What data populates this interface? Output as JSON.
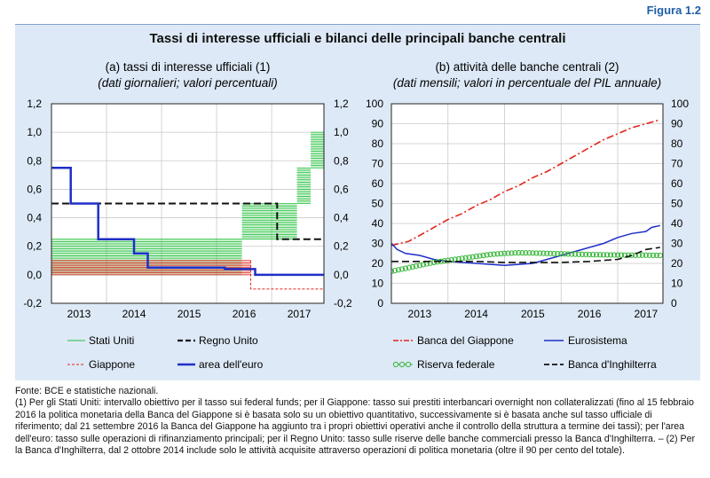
{
  "figure_label": "Figura 1.2",
  "title": "Tassi di interesse ufficiali e bilanci delle principali banche centrali",
  "colors": {
    "panel_bg": "#dde9f6",
    "stati_uniti": "#22c03a",
    "giappone": "#e3251d",
    "regno_unito": "#111111",
    "area_euro": "#1f2fc8",
    "eurosistema": "#1f2fc8",
    "riserva_federale": "#35b535"
  },
  "chart_data": [
    {
      "id": "a",
      "type": "line",
      "title": "(a) tassi di interesse ufficiali (1)",
      "subtitle": "(dati giornalieri; valori percentuali)",
      "ylim": [
        -0.2,
        1.2
      ],
      "yticks": [
        "1,2",
        "1,0",
        "0,8",
        "0,6",
        "0,4",
        "0,2",
        "0,0",
        "-0,2"
      ],
      "ytick_values": [
        1.2,
        1.0,
        0.8,
        0.6,
        0.4,
        0.2,
        0.0,
        -0.2
      ],
      "xlim": [
        2012.5,
        2017.45
      ],
      "xticks": [
        "2013",
        "2014",
        "2015",
        "2016",
        "2017"
      ],
      "xtick_positions": [
        2013,
        2014,
        2015,
        2016,
        2017
      ],
      "year_boundaries": [
        2013.5,
        2014.5,
        2015.5,
        2016.5
      ],
      "grid": true,
      "bands": [
        {
          "name": "Stati Uniti",
          "color_key": "stati_uniti",
          "segments": [
            {
              "x0": 2012.5,
              "x1": 2015.96,
              "y0": 0.0,
              "y1": 0.25
            },
            {
              "x0": 2015.96,
              "x1": 2016.96,
              "y0": 0.25,
              "y1": 0.5
            },
            {
              "x0": 2016.96,
              "x1": 2017.21,
              "y0": 0.5,
              "y1": 0.75
            },
            {
              "x0": 2017.21,
              "x1": 2017.45,
              "y0": 0.75,
              "y1": 1.0
            }
          ]
        },
        {
          "name": "Giappone",
          "color_key": "giappone",
          "segments": [
            {
              "x0": 2012.5,
              "x1": 2016.12,
              "y0": 0.0,
              "y1": 0.1
            }
          ]
        }
      ],
      "series": [
        {
          "name": "Regno Unito",
          "color_key": "regno_unito",
          "style": "dashed",
          "width": 2,
          "points": [
            [
              2012.5,
              0.5
            ],
            [
              2016.6,
              0.5
            ],
            [
              2016.6,
              0.25
            ],
            [
              2017.45,
              0.25
            ]
          ]
        },
        {
          "name": "Giappone",
          "color_key": "giappone",
          "style": "dashed",
          "width": 1,
          "points": [
            [
              2016.12,
              0.1
            ],
            [
              2016.12,
              -0.1
            ],
            [
              2017.45,
              -0.1
            ]
          ]
        },
        {
          "name": "area dell'euro",
          "color_key": "area_euro",
          "style": "solid",
          "width": 2.5,
          "points": [
            [
              2012.5,
              0.75
            ],
            [
              2012.85,
              0.75
            ],
            [
              2012.85,
              0.5
            ],
            [
              2013.35,
              0.5
            ],
            [
              2013.35,
              0.25
            ],
            [
              2014.0,
              0.25
            ],
            [
              2014.0,
              0.15
            ],
            [
              2014.25,
              0.15
            ],
            [
              2014.25,
              0.05
            ],
            [
              2015.65,
              0.05
            ],
            [
              2015.65,
              0.04
            ],
            [
              2016.2,
              0.04
            ],
            [
              2016.2,
              0.0
            ],
            [
              2017.45,
              0.0
            ]
          ]
        }
      ],
      "legend": [
        {
          "label": "Stati Uniti",
          "color_key": "stati_uniti",
          "marker": "thin"
        },
        {
          "label": "Regno Unito",
          "color_key": "regno_unito",
          "marker": "dash-bold"
        },
        {
          "label": "Giappone",
          "color_key": "giappone",
          "marker": "dash-thin"
        },
        {
          "label": "area dell'euro",
          "color_key": "area_euro",
          "marker": "solid-bold"
        }
      ]
    },
    {
      "id": "b",
      "type": "line",
      "title": "(b) attività delle banche centrali (2)",
      "subtitle": "(dati mensili; valori in percentuale del PIL annuale)",
      "ylim": [
        0,
        100
      ],
      "yticks": [
        "100",
        "90",
        "80",
        "70",
        "60",
        "50",
        "40",
        "30",
        "20",
        "10",
        "0"
      ],
      "ytick_values": [
        100,
        90,
        80,
        70,
        60,
        50,
        40,
        30,
        20,
        10,
        0
      ],
      "xlim": [
        2012.5,
        2017.3
      ],
      "xticks": [
        "2013",
        "2014",
        "2015",
        "2016",
        "2017"
      ],
      "xtick_positions": [
        2013,
        2014,
        2015,
        2016,
        2017
      ],
      "year_boundaries": [
        2013.5,
        2014.5,
        2015.5,
        2016.5
      ],
      "grid": true,
      "series": [
        {
          "name": "Banca del Giappone",
          "color_key": "giappone",
          "style": "dashdot",
          "width": 1.6,
          "points": [
            [
              2012.5,
              29
            ],
            [
              2012.8,
              31
            ],
            [
              2013.0,
              34
            ],
            [
              2013.25,
              38
            ],
            [
              2013.5,
              42
            ],
            [
              2013.75,
              45
            ],
            [
              2014.0,
              49
            ],
            [
              2014.25,
              52
            ],
            [
              2014.5,
              56
            ],
            [
              2014.75,
              59
            ],
            [
              2015.0,
              63
            ],
            [
              2015.25,
              66
            ],
            [
              2015.5,
              70
            ],
            [
              2015.75,
              74
            ],
            [
              2016.0,
              78
            ],
            [
              2016.25,
              82
            ],
            [
              2016.5,
              85
            ],
            [
              2016.75,
              88
            ],
            [
              2017.0,
              90
            ],
            [
              2017.25,
              92
            ]
          ]
        },
        {
          "name": "Eurosistema",
          "color_key": "eurosistema",
          "style": "solid",
          "width": 1.5,
          "points": [
            [
              2012.5,
              30
            ],
            [
              2012.6,
              27
            ],
            [
              2012.75,
              25
            ],
            [
              2013.0,
              24
            ],
            [
              2013.25,
              22
            ],
            [
              2013.5,
              21
            ],
            [
              2013.75,
              20.5
            ],
            [
              2014.0,
              20
            ],
            [
              2014.25,
              19.5
            ],
            [
              2014.5,
              19
            ],
            [
              2014.75,
              19.5
            ],
            [
              2015.0,
              20
            ],
            [
              2015.25,
              22
            ],
            [
              2015.5,
              24
            ],
            [
              2015.75,
              26
            ],
            [
              2016.0,
              28
            ],
            [
              2016.25,
              30
            ],
            [
              2016.5,
              33
            ],
            [
              2016.75,
              35
            ],
            [
              2017.0,
              36
            ],
            [
              2017.1,
              38
            ],
            [
              2017.25,
              39
            ]
          ]
        },
        {
          "name": "Riserva federale",
          "color_key": "riserva_federale",
          "style": "circles",
          "width": 1,
          "points": [
            [
              2012.5,
              16
            ],
            [
              2012.75,
              17.5
            ],
            [
              2013.0,
              19
            ],
            [
              2013.25,
              20.5
            ],
            [
              2013.5,
              21.5
            ],
            [
              2013.75,
              22.5
            ],
            [
              2014.0,
              23.5
            ],
            [
              2014.25,
              24.5
            ],
            [
              2014.5,
              25
            ],
            [
              2014.75,
              25.3
            ],
            [
              2015.0,
              25.2
            ],
            [
              2015.25,
              25
            ],
            [
              2015.5,
              24.8
            ],
            [
              2015.75,
              24.6
            ],
            [
              2016.0,
              24.4
            ],
            [
              2016.25,
              24.3
            ],
            [
              2016.5,
              24.2
            ],
            [
              2016.75,
              24.1
            ],
            [
              2017.0,
              24.1
            ],
            [
              2017.25,
              24
            ]
          ]
        },
        {
          "name": "Banca d'Inghilterra",
          "color_key": "regno_unito",
          "style": "dashed",
          "width": 1.6,
          "points": [
            [
              2012.5,
              21
            ],
            [
              2013.0,
              21
            ],
            [
              2013.5,
              21
            ],
            [
              2014.0,
              21
            ],
            [
              2014.5,
              20.5
            ],
            [
              2015.0,
              20.5
            ],
            [
              2015.5,
              20.5
            ],
            [
              2016.0,
              21
            ],
            [
              2016.5,
              22
            ],
            [
              2016.75,
              24
            ],
            [
              2017.0,
              27
            ],
            [
              2017.25,
              28
            ]
          ]
        }
      ],
      "legend": [
        {
          "label": "Banca del Giappone",
          "color_key": "giappone",
          "marker": "dashdot"
        },
        {
          "label": "Eurosistema",
          "color_key": "eurosistema",
          "marker": "solid"
        },
        {
          "label": "Riserva federale",
          "color_key": "riserva_federale",
          "marker": "circles"
        },
        {
          "label": "Banca d'Inghilterra",
          "color_key": "regno_unito",
          "marker": "dashed"
        }
      ]
    }
  ],
  "footnotes": [
    "Fonte: BCE e statistiche nazionali.",
    "(1) Per gli Stati Uniti: intervallo obiettivo per il tasso sui federal funds; per il Giappone: tasso sui prestiti interbancari overnight non collateralizzati (fino al 15 febbraio 2016 la politica monetaria della Banca del Giappone si è basata solo su un obiettivo quantitativo, successivamente si è basata anche sul tasso ufficiale di riferimento; dal 21 settembre 2016 la Banca del Giappone ha aggiunto tra i propri obiettivi operativi anche il controllo della struttura a termine dei tassi); per l'area dell'euro: tasso sulle operazioni di rifinanziamento principali; per il Regno Unito: tasso sulle riserve delle banche commerciali presso la Banca d'Inghilterra. – (2) Per la Banca d'Inghilterra, dal 2 ottobre 2014 include solo le attività acquisite attraverso operazioni di politica monetaria (oltre il 90 per cento del totale)."
  ]
}
